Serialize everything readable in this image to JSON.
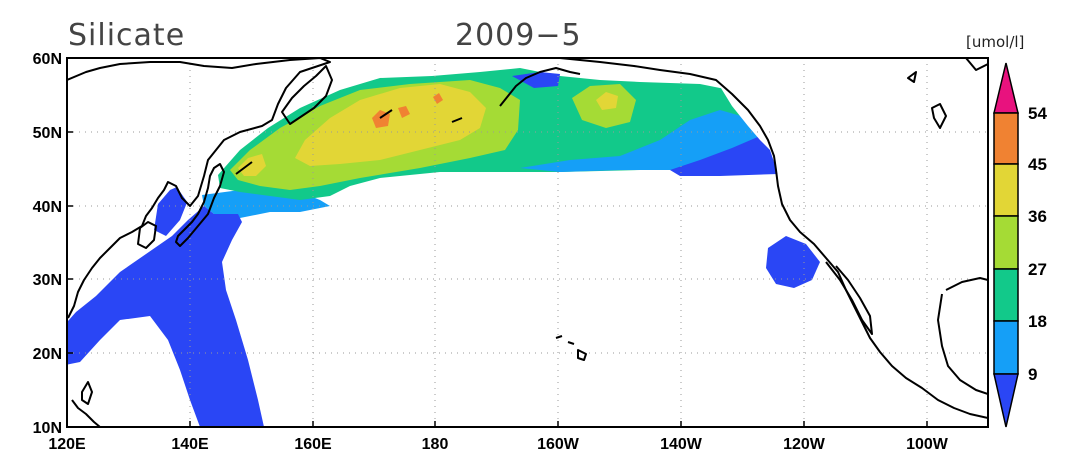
{
  "title": {
    "variable": "Silicate",
    "date": "2009−5"
  },
  "colorbar": {
    "unit": "[umol/l]",
    "labels": [
      "54",
      "45",
      "36",
      "27",
      "18",
      "9"
    ],
    "colors": [
      "#e8127e",
      "#f08232",
      "#e2d636",
      "#a5db35",
      "#12c98a",
      "#159ff7",
      "#2a46f5"
    ]
  },
  "axes": {
    "x_ticks": [
      "120E",
      "140E",
      "160E",
      "180",
      "160W",
      "140W",
      "120W",
      "100W"
    ],
    "y_ticks": [
      "60N",
      "50N",
      "40N",
      "30N",
      "20N",
      "10N"
    ]
  },
  "chart_data": {
    "type": "heatmap",
    "variable": "Silicate",
    "unit": "[umol/l]",
    "date": "2009-5",
    "lon_range": [
      120,
      270
    ],
    "lat_range": [
      10,
      60
    ],
    "levels": [
      9,
      18,
      27,
      36,
      45,
      54
    ],
    "regions": [
      {
        "area": "Kuroshio / western subtropical Pacific",
        "level_band": "<9"
      },
      {
        "area": "East of Japan near 40N",
        "level_band": "9-18"
      },
      {
        "area": "Subarctic Pacific 45N-55N",
        "level_band": "18-27"
      },
      {
        "area": "Western subarctic gyre",
        "level_band": "27-36"
      },
      {
        "area": "Core near 170E-180, 50N-55N",
        "level_band": "36-45"
      },
      {
        "area": "Patches near 175E, 52N",
        "level_band": "45-54"
      },
      {
        "area": "Gulf of Alaska near 150W, 55N",
        "level_band": "27-36"
      },
      {
        "area": "Off California near 32N, 122W",
        "level_band": "<9"
      }
    ]
  }
}
